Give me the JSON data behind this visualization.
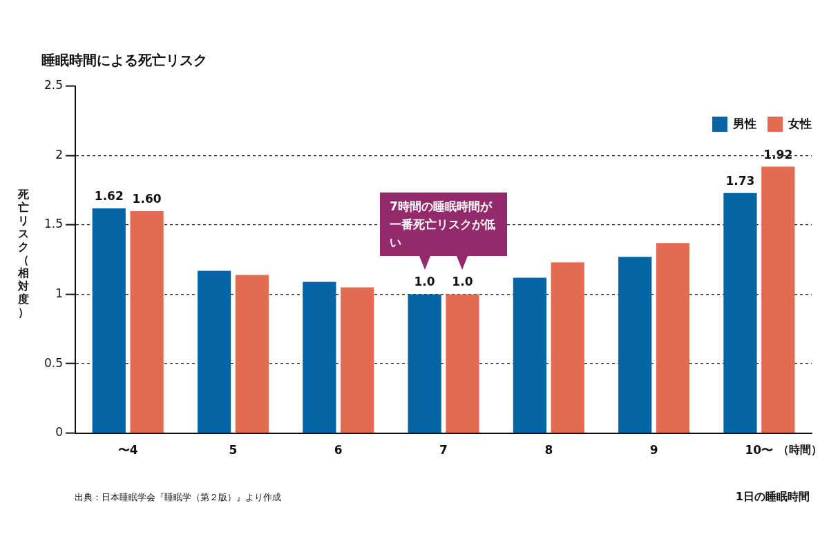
{
  "chart_data": {
    "type": "bar",
    "title": "睡眠時間による死亡リスク",
    "xlabel": "1日の睡眠時間",
    "ylabel": "死亡リスク（相対度）",
    "categories": [
      "〜4",
      "5",
      "6",
      "7",
      "8",
      "9",
      "10〜"
    ],
    "series": [
      {
        "name": "男性",
        "color": "#0565a5",
        "values": [
          1.62,
          1.17,
          1.09,
          1.0,
          1.12,
          1.27,
          1.73
        ],
        "value_labels": [
          "1.62",
          null,
          null,
          "1.0",
          null,
          null,
          "1.73"
        ]
      },
      {
        "name": "女性",
        "color": "#e36b52",
        "values": [
          1.6,
          1.14,
          1.05,
          1.0,
          1.23,
          1.37,
          1.92
        ],
        "value_labels": [
          "1.60",
          null,
          null,
          "1.0",
          null,
          null,
          "1.92"
        ]
      }
    ],
    "ylim": [
      0,
      2.5
    ],
    "yticks": [
      0,
      0.5,
      1,
      1.5,
      2,
      2.5
    ],
    "grid": "y",
    "legend": "top right",
    "annotations": [
      "（時間）",
      "出典：日本睡眠学会『睡眠学（第２版）』より作成",
      "7時間の睡眠時間が一番死亡リスクが低い"
    ]
  }
}
